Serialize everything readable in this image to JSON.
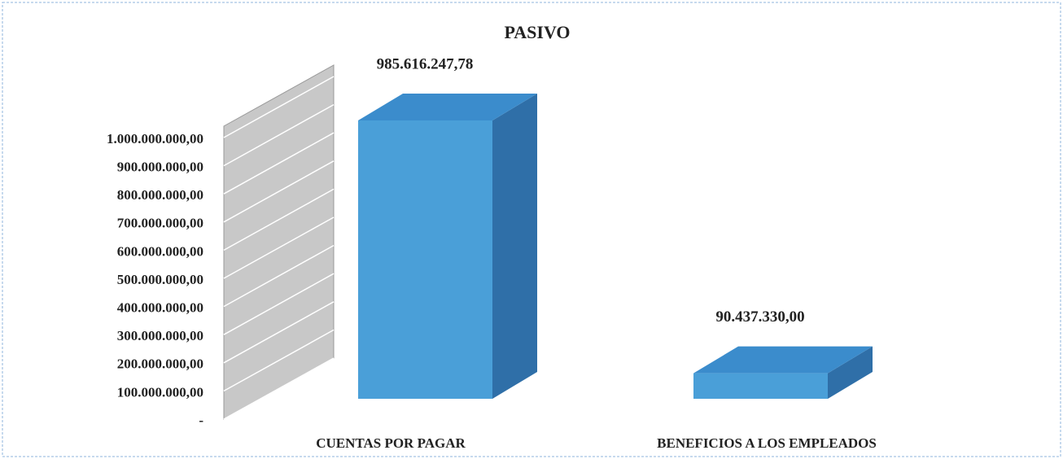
{
  "chart_data": {
    "type": "bar3d",
    "title": "PASIVO",
    "categories": [
      "CUENTAS POR PAGAR",
      "BENEFICIOS A LOS EMPLEADOS"
    ],
    "values": [
      985616247.78,
      90437330
    ],
    "value_labels": [
      "985.616.247,78",
      "90.437.330,00"
    ],
    "color": "#4a9fd8",
    "ylim": [
      0,
      1000000000
    ],
    "yticks": [
      {
        "value": 0,
        "label": "-"
      },
      {
        "value": 100000000,
        "label": "100.000.000,00"
      },
      {
        "value": 200000000,
        "label": "200.000.000,00"
      },
      {
        "value": 300000000,
        "label": "300.000.000,00"
      },
      {
        "value": 400000000,
        "label": "400.000.000,00"
      },
      {
        "value": 500000000,
        "label": "500.000.000,00"
      },
      {
        "value": 600000000,
        "label": "600.000.000,00"
      },
      {
        "value": 700000000,
        "label": "700.000.000,00"
      },
      {
        "value": 800000000,
        "label": "800.000.000,00"
      },
      {
        "value": 900000000,
        "label": "900.000.000,00"
      },
      {
        "value": 1000000000,
        "label": "1.000.000.000,00"
      }
    ],
    "grid": true
  }
}
